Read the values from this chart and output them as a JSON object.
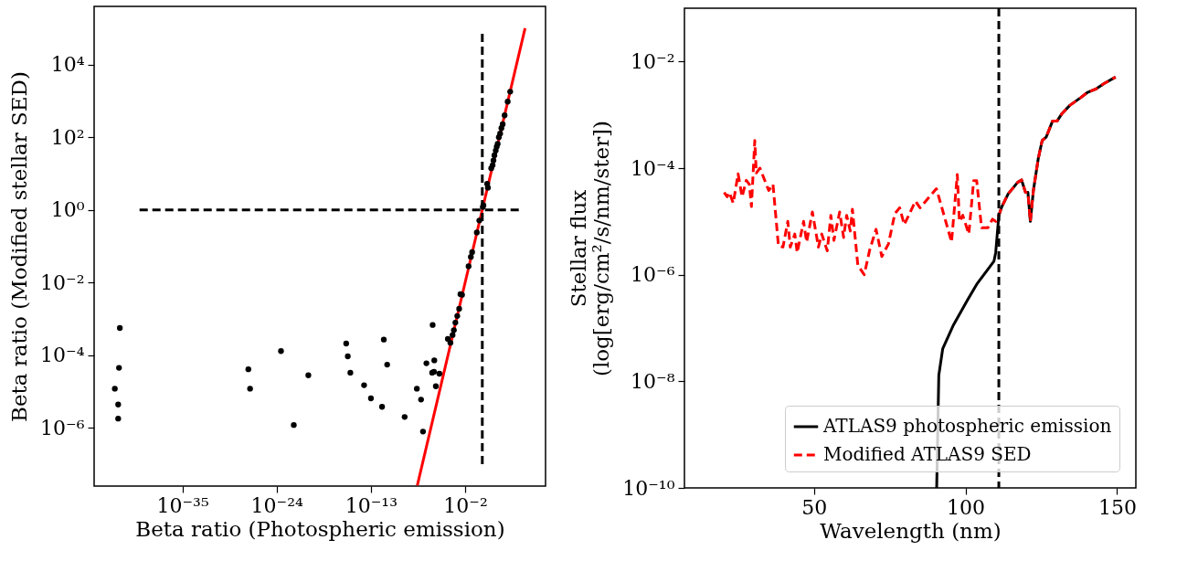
{
  "chart_data": [
    {
      "type": "scatter",
      "xlabel": "Beta ratio (Photospheric emission)",
      "ylabel": "Beta ratio (Modified stellar SED)",
      "log": "xy",
      "grid": false,
      "xlim": [
        5e-46,
        24000000.0
      ],
      "ylim": [
        2.5e-08,
        400000.0
      ],
      "xticks": [
        {
          "value": 1e-35,
          "label": "10⁻³⁵"
        },
        {
          "value": 1e-24,
          "label": "10⁻²⁴"
        },
        {
          "value": 1e-13,
          "label": "10⁻¹³"
        },
        {
          "value": 0.01,
          "label": "10⁻²"
        }
      ],
      "yticks": [
        {
          "value": 1e-06,
          "label": "10⁻⁶"
        },
        {
          "value": 0.0001,
          "label": "10⁻⁴"
        },
        {
          "value": 0.01,
          "label": "10⁻²"
        },
        {
          "value": 1,
          "label": "10⁰"
        },
        {
          "value": 100,
          "label": "10²"
        },
        {
          "value": 10000.0,
          "label": "10⁴"
        }
      ],
      "series": [
        {
          "type": "line",
          "color": "#ff0000",
          "line_style": "solid",
          "x": [
            2.6e-08,
            98000.0
          ],
          "values": [
            2.6e-08,
            100000.0
          ]
        },
        {
          "type": "line",
          "color": "#000000",
          "line_style": "dashed",
          "x": [
            1e-40,
            40000.0
          ],
          "values": [
            1,
            1
          ]
        },
        {
          "type": "line",
          "color": "#000000",
          "line_style": "dashed",
          "x": [
            1,
            1
          ],
          "values": [
            1e-07,
            80000.0
          ]
        },
        {
          "color": "#000000",
          "marker": "circle",
          "x": [
            5e-43,
            4e-43,
            1.3e-43,
            3.2e-43,
            3.2e-43,
            5e-28,
            7.9e-28,
            3.2e-24,
            1e-22,
            5e-21,
            1.3e-16,
            2e-16,
            4e-16,
            1.6e-14,
            1e-13,
            2e-12,
            3.2e-12,
            7.9e-12,
            8.7e-10,
            2.3e-08,
            7.1e-08,
            1.2e-07,
            3e-07,
            1.6e-06,
            2.5e-06,
            1.4e-06,
            2.3e-06,
            3.8e-06,
            9.8e-06,
            9.5e-05,
            0.00019,
            0.00034,
            0.00048,
            0.00072,
            0.0012,
            0.002,
            0.0028,
            0.0043,
            0.025,
            0.046,
            0.065,
            0.23,
            0.45,
            1.15,
            1.35,
            3.7,
            4.5,
            11,
            16,
            20,
            26,
            37,
            48,
            62,
            85,
            120,
            170,
            240,
            400,
            910,
            1800
          ],
          "values": [
            0.00056,
            4.5e-05,
            1.2e-05,
            4.4e-06,
            1.8e-06,
            4.1e-05,
            1.2e-05,
            0.00013,
            1.2e-06,
            2.8e-05,
            0.00021,
            9.3e-05,
            3.3e-05,
            1.5e-05,
            6.5e-06,
            3.8e-06,
            0.00027,
            5.5e-05,
            2e-06,
            1.2e-05,
            6e-06,
            7.9e-07,
            6e-05,
            0.00068,
            7.2e-05,
            3.3e-05,
            3.5e-05,
            1.4e-05,
            3.1e-05,
            0.00028,
            0.00022,
            0.00036,
            0.00049,
            0.00079,
            0.0012,
            0.0019,
            0.0048,
            0.0046,
            0.028,
            0.051,
            0.069,
            0.24,
            0.51,
            1.2,
            1.35,
            5.2,
            4.1,
            14,
            17,
            23,
            32,
            43,
            55,
            66,
            100,
            126,
            178,
            229,
            400,
            955,
            1800
          ]
        }
      ]
    },
    {
      "type": "line",
      "xlabel": "Wavelength (nm)",
      "ylabel": "Stellar flux\n(log[erg/cm²/s/nm/ster])",
      "log": "y",
      "grid": false,
      "legend": "bottom right",
      "xlim": [
        7.3,
        156.2
      ],
      "ylim": [
        1e-10,
        0.1
      ],
      "xticks": [
        50,
        100,
        150
      ],
      "yticks": [
        {
          "value": 1e-10,
          "label": "10⁻¹⁰"
        },
        {
          "value": 1e-08,
          "label": "10⁻⁸"
        },
        {
          "value": 1e-06,
          "label": "10⁻⁶"
        },
        {
          "value": 0.0001,
          "label": "10⁻⁴"
        },
        {
          "value": 0.01,
          "label": "10⁻²"
        }
      ],
      "ref_lines": [
        {
          "axis": "x",
          "value": 111,
          "color": "#000000",
          "line_style": "dashed"
        }
      ],
      "series": [
        {
          "name": "ATLAS9 photospheric emission",
          "color": "#000000",
          "line_style": "solid",
          "x": [
            90.5,
            91.2,
            92.5,
            95.9,
            100.6,
            103.7,
            109.4,
            109.97,
            111.0,
            112.0,
            114.1,
            117.2,
            118.5,
            119.8,
            120.6,
            121.4,
            122.4,
            124.0,
            125.3,
            126.6,
            128.7,
            130.2,
            131.8,
            134.4,
            138.0,
            140.1,
            143.2,
            145.8,
            149.5
          ],
          "values": [
            1e-10,
            1.3e-08,
            4.1e-08,
            1.1e-07,
            3.3e-07,
            6.6e-07,
            1.8e-06,
            2.6e-06,
            1.3e-05,
            1.9e-05,
            3.3e-05,
            5.4e-05,
            6e-05,
            3.5e-05,
            3.5e-05,
            1e-05,
            3.8e-05,
            0.00015,
            0.00033,
            0.00038,
            0.00076,
            0.00076,
            0.00105,
            0.0015,
            0.0021,
            0.0026,
            0.0031,
            0.0039,
            0.0051
          ]
        },
        {
          "name": "Modified ATLAS9 SED",
          "color": "#ff0000",
          "line_style": "dashed",
          "x": [
            20.4,
            21.4,
            22.1,
            23.4,
            25.0,
            26.3,
            27.7,
            28.7,
            29.4,
            30.5,
            31.0,
            32.2,
            35.1,
            36.5,
            38.3,
            39.8,
            41.4,
            42.2,
            43.7,
            44.5,
            46.6,
            47.6,
            49.5,
            51.5,
            52.6,
            54.4,
            55.6,
            56.6,
            58.5,
            59.8,
            60.8,
            62.0,
            62.7,
            64.5,
            66.6,
            68.4,
            70.5,
            72.4,
            74.6,
            76.7,
            78.3,
            79.8,
            83.5,
            85.0,
            90.4,
            91.8,
            95.4,
            97.3,
            98.0,
            99.1,
            101.1,
            102.7,
            103.7,
            105.3,
            107.4,
            108.9,
            110.0,
            111.0,
            112.0,
            114.1,
            117.2,
            118.5,
            119.8,
            120.6,
            121.4,
            122.4,
            124.0,
            125.3,
            126.6,
            128.7,
            130.2,
            131.8,
            134.4,
            138.0,
            140.1,
            143.2,
            145.8,
            149.5
          ],
          "values": [
            3.5e-05,
            2.9e-05,
            3.5e-05,
            2.2e-05,
            7.8e-05,
            2.9e-05,
            5.9e-05,
            5e-05,
            1.9e-05,
            0.00033,
            8.1e-05,
            0.0001,
            3.8e-05,
            5e-05,
            3.5e-06,
            3.3e-06,
            1e-05,
            3.3e-06,
            5.8e-06,
            2.6e-06,
            1e-05,
            4.1e-06,
            1.5e-05,
            3.3e-06,
            5.8e-06,
            2.8e-06,
            1.3e-05,
            4.4e-06,
            1.5e-05,
            5e-06,
            1.3e-05,
            6.6e-06,
            1.7e-05,
            1.5e-06,
            1e-06,
            2.9e-06,
            7.1e-06,
            2.2e-06,
            3.8e-06,
            1.4e-05,
            1.8e-05,
            8.7e-06,
            2.4e-05,
            1.8e-05,
            4.1e-05,
            2.2e-05,
            4.1e-06,
            7.6e-05,
            1e-05,
            1.3e-05,
            5.8e-06,
            5.8e-05,
            5.8e-05,
            7.6e-06,
            7.6e-06,
            1.1e-05,
            1e-05,
            1.3e-05,
            1.9e-05,
            3.3e-05,
            5.4e-05,
            6e-05,
            3.5e-05,
            3.5e-05,
            1e-05,
            3.8e-05,
            0.00015,
            0.00033,
            0.00038,
            0.00076,
            0.00076,
            0.00105,
            0.0015,
            0.0021,
            0.0026,
            0.0031,
            0.0039,
            0.0051
          ]
        }
      ]
    }
  ]
}
